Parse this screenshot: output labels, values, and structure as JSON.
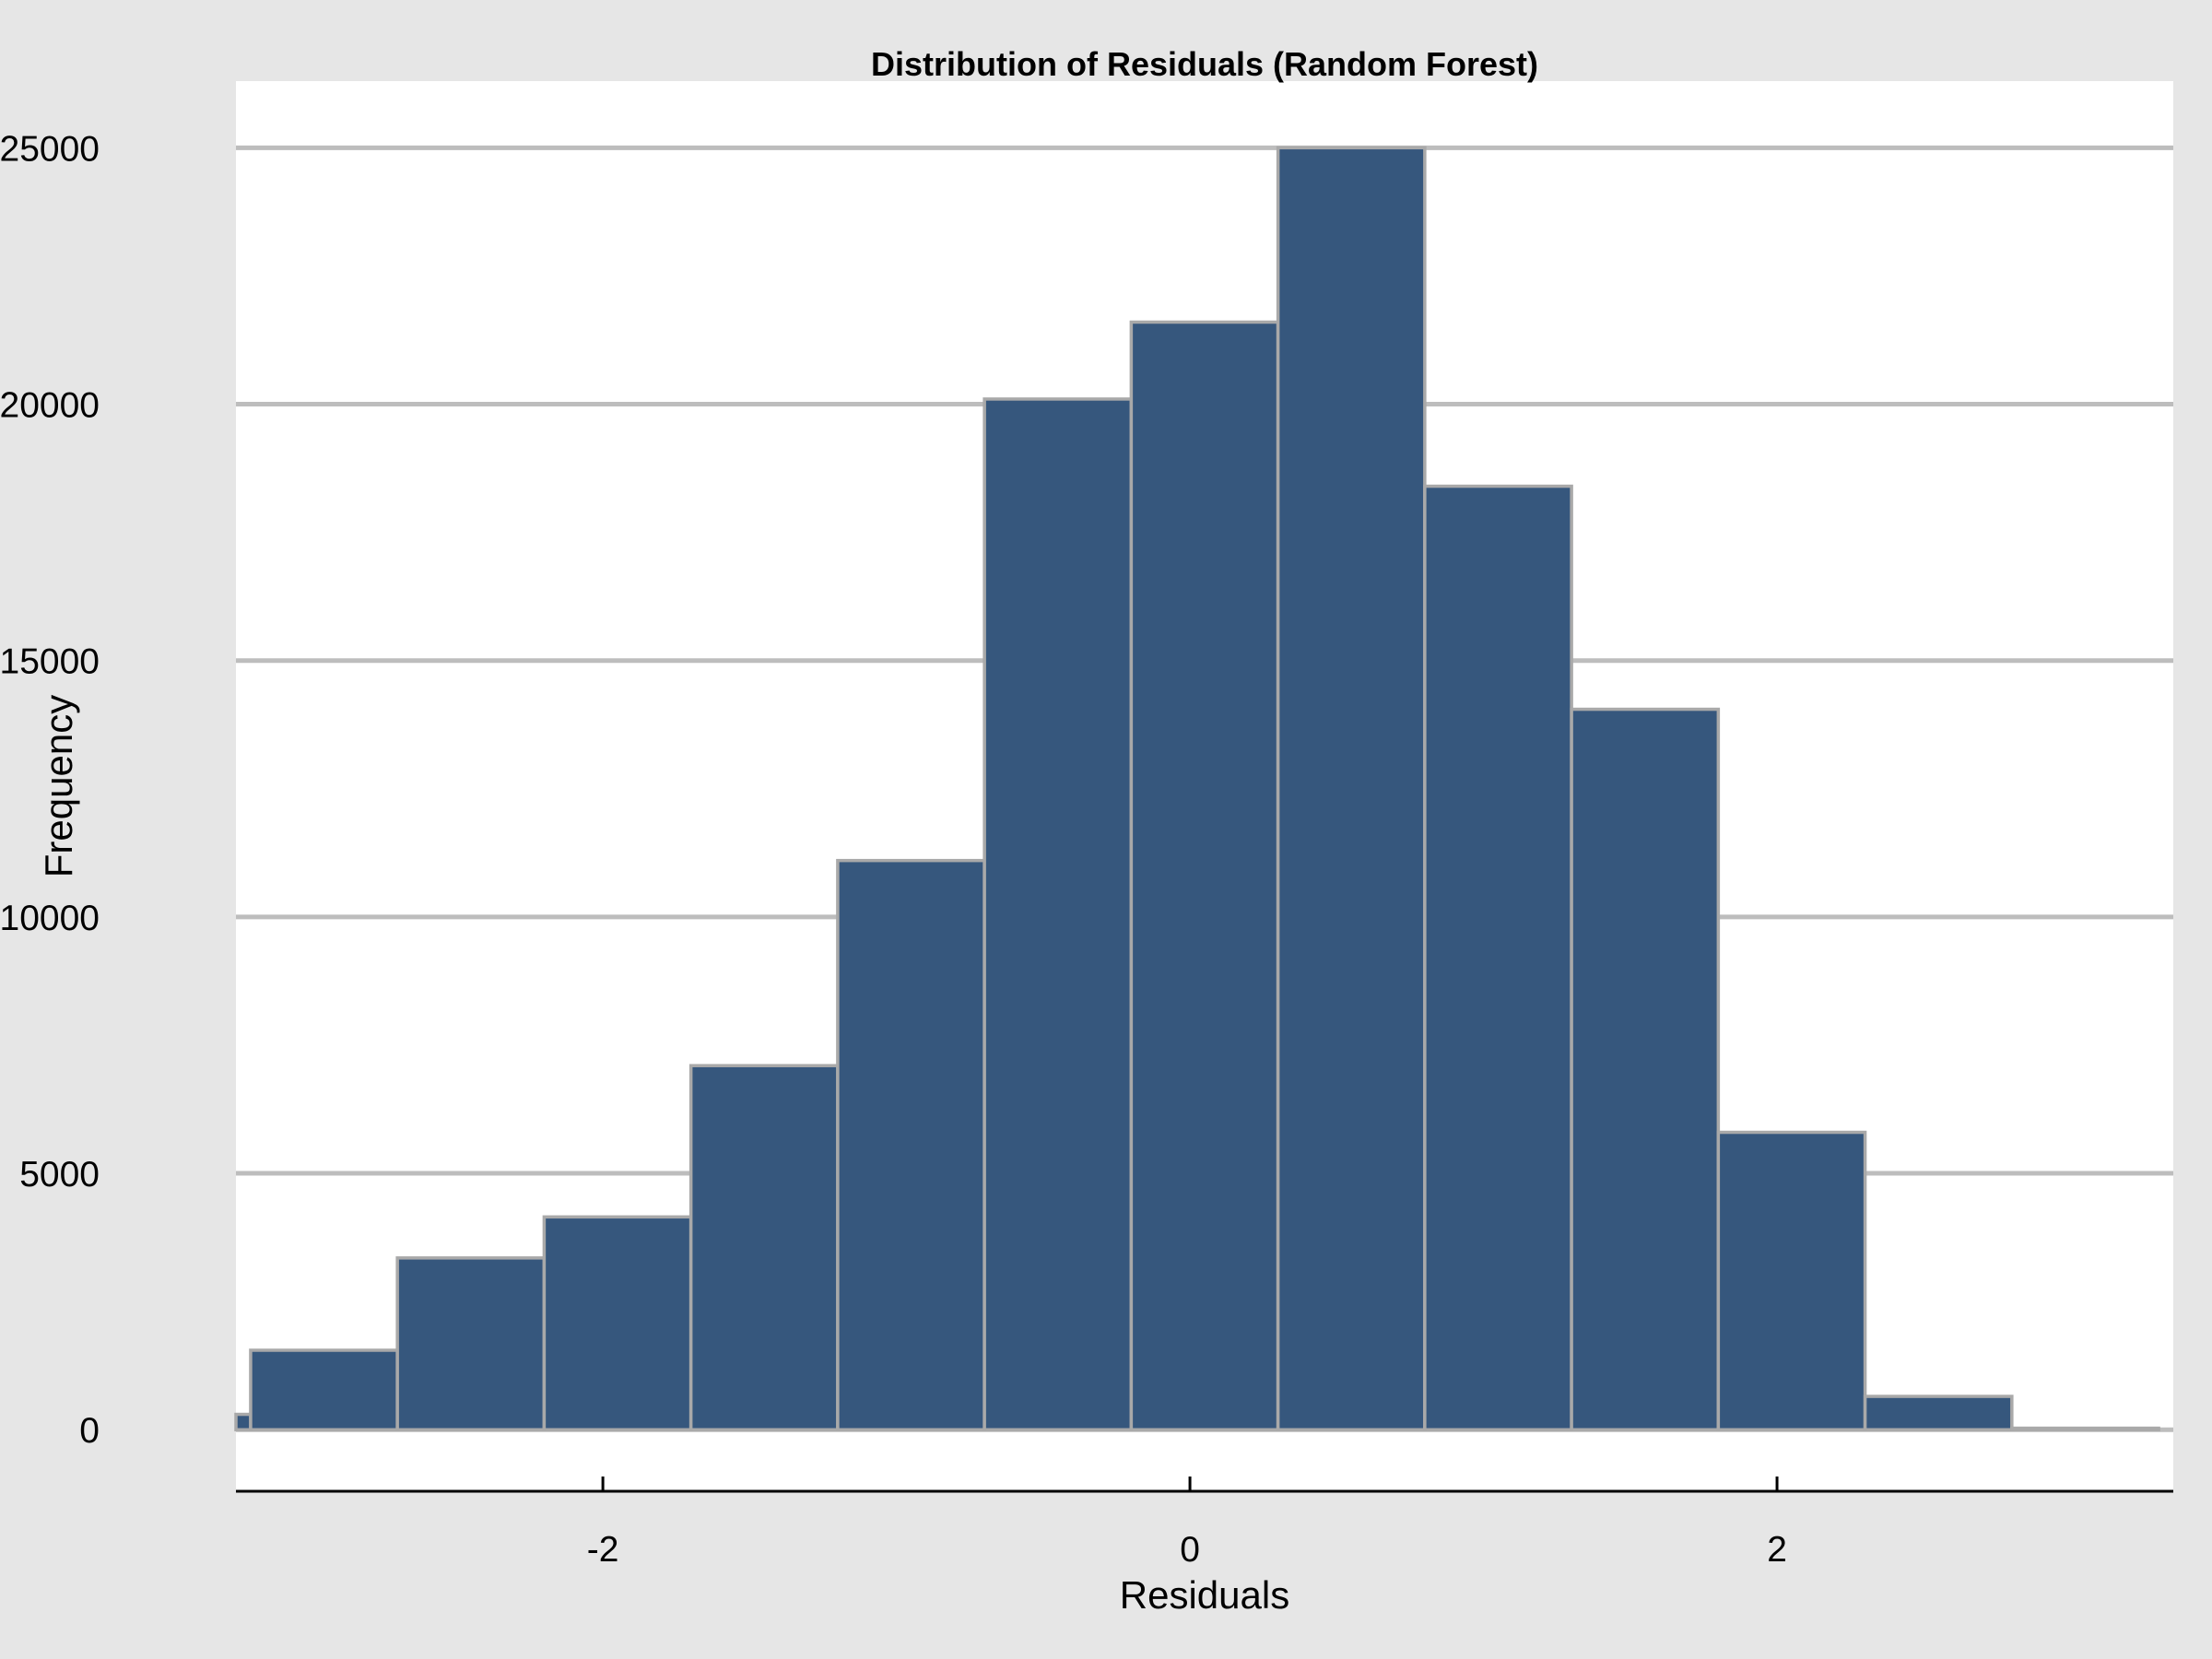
{
  "chart_data": {
    "type": "bar",
    "title": "Distribution of Residuals (Random Forest)",
    "xlabel": "Residuals",
    "ylabel": "Frequency",
    "xlim": [
      -3.25,
      3.35
    ],
    "ylim": [
      -1200,
      26300
    ],
    "x_ticks": [
      -2,
      0,
      2
    ],
    "x_tick_labels": [
      "-2",
      "0",
      "2"
    ],
    "y_ticks": [
      0,
      5000,
      10000,
      15000,
      20000,
      25000
    ],
    "y_tick_labels": [
      "0",
      "5000",
      "10000",
      "15000",
      "20000",
      "25000"
    ],
    "grid": "y",
    "bar_color": "#36577d",
    "edge_color": "#a9a9a9",
    "background": "#e6e6e6",
    "plot_background": "#ffffff",
    "bins": [
      {
        "x0": -3.3,
        "x1": -3.2,
        "count": 300
      },
      {
        "x0": -3.2,
        "x1": -2.7,
        "count": 1550
      },
      {
        "x0": -2.7,
        "x1": -2.2,
        "count": 3350
      },
      {
        "x0": -2.2,
        "x1": -1.7,
        "count": 4150
      },
      {
        "x0": -1.7,
        "x1": -1.2,
        "count": 7100
      },
      {
        "x0": -1.2,
        "x1": -0.7,
        "count": 11100
      },
      {
        "x0": -0.7,
        "x1": -0.2,
        "count": 20100
      },
      {
        "x0": -0.2,
        "x1": 0.3,
        "count": 21600
      },
      {
        "x0": 0.3,
        "x1": 0.8,
        "count": 25000
      },
      {
        "x0": 0.8,
        "x1": 1.3,
        "count": 18400
      },
      {
        "x0": 1.3,
        "x1": 1.8,
        "count": 14050
      },
      {
        "x0": 1.8,
        "x1": 2.3,
        "count": 5800
      },
      {
        "x0": 2.3,
        "x1": 2.8,
        "count": 650
      },
      {
        "x0": 2.8,
        "x1": 3.3,
        "count": 30
      }
    ]
  }
}
